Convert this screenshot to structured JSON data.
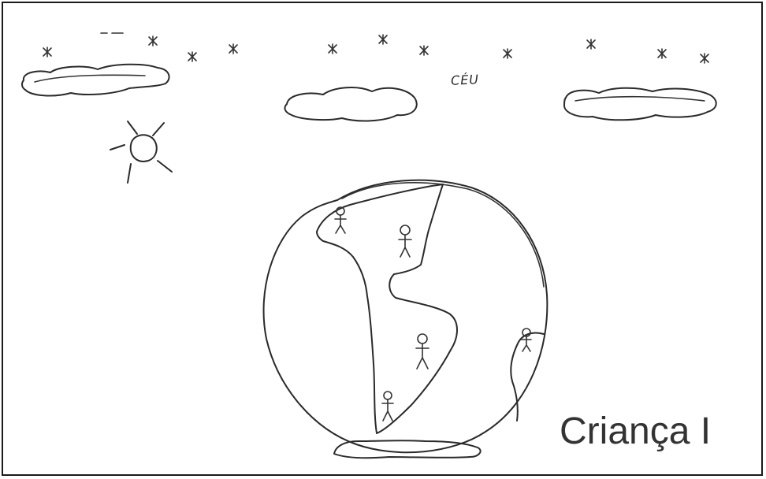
{
  "drawing": {
    "sky_label": "CÉU",
    "caption": "Criança I",
    "ink_color": "#2a2a2a",
    "background_color": "#ffffff"
  }
}
